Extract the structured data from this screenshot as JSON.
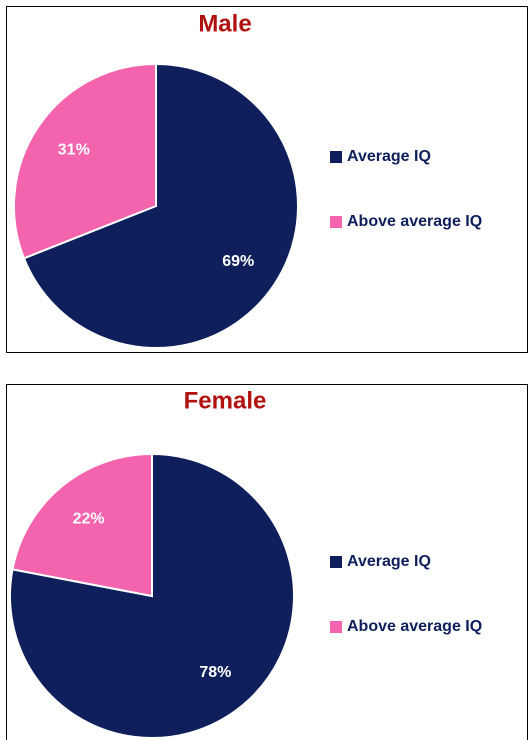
{
  "chart_data": [
    {
      "type": "pie",
      "title": "Male",
      "labels": [
        "Average IQ",
        "Above average IQ"
      ],
      "values": [
        69,
        31
      ],
      "value_labels": [
        "69%",
        "31%"
      ],
      "colors": [
        "#0e1f5b",
        "#f463ad"
      ]
    },
    {
      "type": "pie",
      "title": "Female",
      "labels": [
        "Average IQ",
        "Above average IQ"
      ],
      "values": [
        78,
        22
      ],
      "value_labels": [
        "78%",
        "22%"
      ],
      "colors": [
        "#0e1f5b",
        "#f463ad"
      ]
    }
  ]
}
